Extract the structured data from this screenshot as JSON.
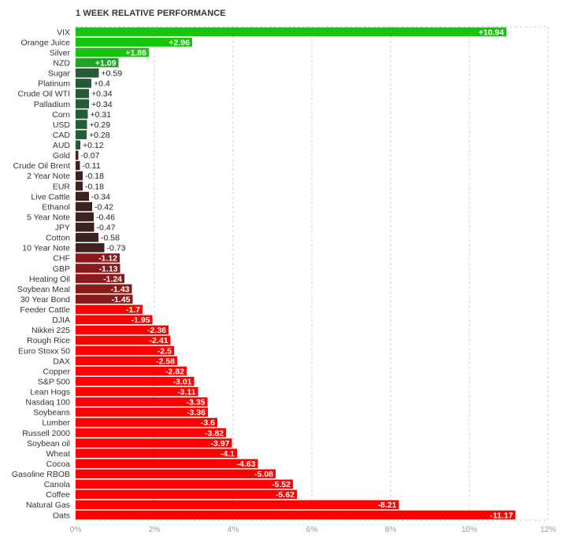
{
  "chart_data": {
    "type": "bar",
    "orientation": "horizontal",
    "title": "1 WEEK RELATIVE PERFORMANCE",
    "categories": [
      "VIX",
      "Orange Juice",
      "Silver",
      "NZD",
      "Sugar",
      "Platinum",
      "Crude Oil WTI",
      "Palladium",
      "Corn",
      "USD",
      "CAD",
      "AUD",
      "Gold",
      "Crude Oil Brent",
      "2 Year Note",
      "EUR",
      "Live Cattle",
      "Ethanol",
      "5 Year Note",
      "JPY",
      "Cotton",
      "10 Year Note",
      "CHF",
      "GBP",
      "Heating Oil",
      "Soybean Meal",
      "30 Year Bond",
      "Feeder Cattle",
      "DJIA",
      "Nikkei 225",
      "Rough Rice",
      "Euro Stoxx 50",
      "DAX",
      "Copper",
      "S&P 500",
      "Lean Hogs",
      "Nasdaq 100",
      "Soybeans",
      "Lumber",
      "Russell 2000",
      "Soybean oil",
      "Wheat",
      "Cocoa",
      "Gasoline RBOB",
      "Canola",
      "Coffee",
      "Natural Gas",
      "Oats"
    ],
    "values": [
      10.94,
      2.96,
      1.86,
      1.09,
      0.59,
      0.4,
      0.34,
      0.34,
      0.31,
      0.29,
      0.28,
      0.12,
      -0.07,
      -0.11,
      -0.18,
      -0.18,
      -0.34,
      -0.42,
      -0.46,
      -0.47,
      -0.58,
      -0.73,
      -1.12,
      -1.13,
      -1.24,
      -1.43,
      -1.45,
      -1.7,
      -1.95,
      -2.36,
      -2.41,
      -2.5,
      -2.58,
      -2.82,
      -3.01,
      -3.11,
      -3.35,
      -3.36,
      -3.6,
      -3.82,
      -3.97,
      -4.1,
      -4.63,
      -5.08,
      -5.52,
      -5.62,
      -8.21,
      -11.17
    ],
    "value_labels": [
      "+10.94",
      "+2.96",
      "+1.86",
      "+1.09",
      "+0.59",
      "+0.4",
      "+0.34",
      "+0.34",
      "+0.31",
      "+0.29",
      "+0.28",
      "+0.12",
      "-0.07",
      "-0.11",
      "-0.18",
      "-0.18",
      "-0.34",
      "-0.42",
      "-0.46",
      "-0.47",
      "-0.58",
      "-0.73",
      "-1.12",
      "-1.13",
      "-1.24",
      "-1.43",
      "-1.45",
      "-1.7",
      "-1.95",
      "-2.36",
      "-2.41",
      "-2.5",
      "-2.58",
      "-2.82",
      "-3.01",
      "-3.11",
      "-3.35",
      "-3.36",
      "-3.6",
      "-3.82",
      "-3.97",
      "-4.1",
      "-4.63",
      "-5.08",
      "-5.52",
      "-5.62",
      "-8.21",
      "-11.17"
    ],
    "xlim": [
      0,
      12
    ],
    "x_ticks": [
      "0%",
      "2%",
      "4%",
      "6%",
      "8%",
      "10%",
      "12%"
    ],
    "bar_length": "absolute value",
    "grid": true,
    "xlabel": "",
    "ylabel": "",
    "colors": {
      "strong_positive": "#16c60c",
      "mid_positive": "#22a12a",
      "weak_positive": "#245a36",
      "weak_negative": "#3e2121",
      "mid_negative": "#8b1a1a",
      "strong_negative": "#ff0000",
      "label_text": "#333333",
      "tick_text": "#999999",
      "grid": "#cccccc"
    }
  }
}
